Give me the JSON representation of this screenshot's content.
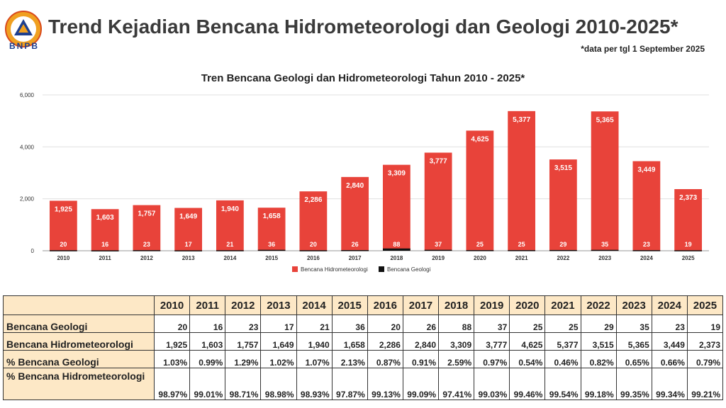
{
  "header": {
    "logo_text": "BNPB",
    "title": "Trend Kejadian Bencana Hidrometeorologi dan Geologi 2010-2025*",
    "note": "*data per tgl 1 September 2025"
  },
  "colors": {
    "hidro": "#e8433a",
    "geologi": "#111111",
    "table_header_bg": "#fde8c6"
  },
  "chart_data": {
    "type": "bar",
    "title": "Tren Bencana Geologi dan Hidrometeorologi Tahun 2010 - 2025*",
    "categories": [
      "2010",
      "2011",
      "2012",
      "2013",
      "2014",
      "2015",
      "2016",
      "2017",
      "2018",
      "2019",
      "2020",
      "2021",
      "2022",
      "2023",
      "2024",
      "2025"
    ],
    "series": [
      {
        "name": "Bencana Hidrometeorologi",
        "values": [
          1925,
          1603,
          1757,
          1649,
          1940,
          1658,
          2286,
          2840,
          3309,
          3777,
          4625,
          5377,
          3515,
          5365,
          3449,
          2373
        ],
        "labels": [
          "1,925",
          "1,603",
          "1,757",
          "1,649",
          "1,940",
          "1,658",
          "2,286",
          "2,840",
          "3,309",
          "3,777",
          "4,625",
          "5,377",
          "3,515",
          "5,365",
          "3,449",
          "2,373"
        ]
      },
      {
        "name": "Bencana Geologi",
        "values": [
          20,
          16,
          23,
          17,
          21,
          36,
          20,
          26,
          88,
          37,
          25,
          25,
          29,
          35,
          23,
          19
        ],
        "labels": [
          "20",
          "16",
          "23",
          "17",
          "21",
          "36",
          "20",
          "26",
          "88",
          "37",
          "25",
          "25",
          "29",
          "35",
          "23",
          "19"
        ]
      }
    ],
    "ylim": [
      0,
      6000
    ],
    "yticks": [
      "0",
      "2,000",
      "4,000",
      "6,000"
    ],
    "ytick_values": [
      0,
      2000,
      4000,
      6000
    ],
    "grid": true,
    "legend_position": "bottom"
  },
  "table": {
    "years": [
      "2010",
      "2011",
      "2012",
      "2013",
      "2014",
      "2015",
      "2016",
      "2017",
      "2018",
      "2019",
      "2020",
      "2021",
      "2022",
      "2023",
      "2024",
      "2025"
    ],
    "rows": [
      {
        "label": "Bencana Geologi",
        "values": [
          "20",
          "16",
          "23",
          "17",
          "21",
          "36",
          "20",
          "26",
          "88",
          "37",
          "25",
          "25",
          "29",
          "35",
          "23",
          "19"
        ]
      },
      {
        "label": "Bencana Hidrometeorologi",
        "values": [
          "1,925",
          "1,603",
          "1,757",
          "1,649",
          "1,940",
          "1,658",
          "2,286",
          "2,840",
          "3,309",
          "3,777",
          "4,625",
          "5,377",
          "3,515",
          "5,365",
          "3,449",
          "2,373"
        ]
      },
      {
        "label": "% Bencana Geologi",
        "values": [
          "1.03%",
          "0.99%",
          "1.29%",
          "1.02%",
          "1.07%",
          "2.13%",
          "0.87%",
          "0.91%",
          "2.59%",
          "0.97%",
          "0.54%",
          "0.46%",
          "0.82%",
          "0.65%",
          "0.66%",
          "0.79%"
        ]
      },
      {
        "label": "% Bencana Hidrometeorologi",
        "values": [
          "98.97%",
          "99.01%",
          "98.71%",
          "98.98%",
          "98.93%",
          "97.87%",
          "99.13%",
          "99.09%",
          "97.41%",
          "99.03%",
          "99.46%",
          "99.54%",
          "99.18%",
          "99.35%",
          "99.34%",
          "99.21%"
        ]
      }
    ]
  }
}
